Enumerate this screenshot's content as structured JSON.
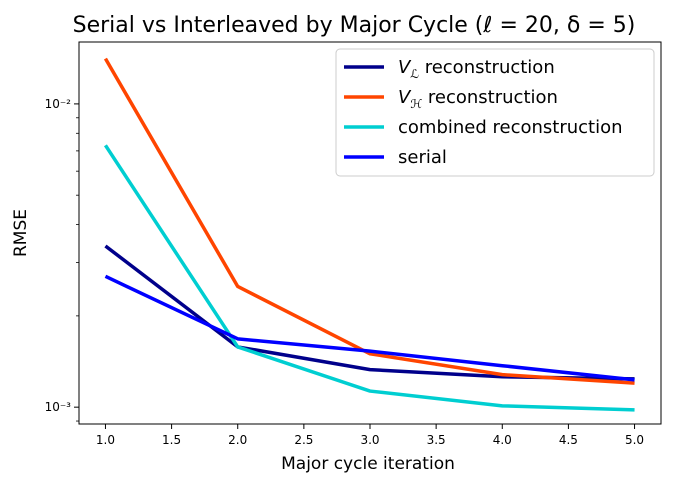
{
  "chart_data": {
    "type": "line",
    "title": "Serial vs Interleaved by Major Cycle (ℓ = 20, δ = 5)",
    "xlabel": "Major cycle iteration",
    "ylabel": "RMSE",
    "xscale": "linear",
    "yscale": "log",
    "xlim": [
      0.8,
      5.2
    ],
    "ylim": [
      0.00088,
      0.016
    ],
    "x_ticks": [
      1.0,
      1.5,
      2.0,
      2.5,
      3.0,
      3.5,
      4.0,
      4.5,
      5.0
    ],
    "x_tick_labels": [
      "1.0",
      "1.5",
      "2.0",
      "2.5",
      "3.0",
      "3.5",
      "4.0",
      "4.5",
      "5.0"
    ],
    "y_ticks": [
      0.001,
      0.01
    ],
    "y_tick_labels": [
      "10⁻³",
      "10⁻²"
    ],
    "grid": false,
    "legend_position": "top-right",
    "x": [
      1,
      2,
      3,
      4,
      5
    ],
    "series": [
      {
        "name": "V_ℒ reconstruction",
        "legend_main": "V",
        "legend_sub": "ℒ",
        "legend_rest": " reconstruction",
        "color": "#00008b",
        "values": [
          0.0034,
          0.00158,
          0.00133,
          0.00126,
          0.00124
        ]
      },
      {
        "name": "V_ℋ reconstruction",
        "legend_main": "V",
        "legend_sub": "ℋ",
        "legend_rest": " reconstruction",
        "color": "#ff4500",
        "values": [
          0.0141,
          0.0025,
          0.0015,
          0.00128,
          0.0012
        ]
      },
      {
        "name": "combined reconstruction",
        "legend_main": "combined reconstruction",
        "legend_sub": "",
        "legend_rest": "",
        "color": "#00ced1",
        "values": [
          0.0073,
          0.00158,
          0.00113,
          0.00101,
          0.00098
        ]
      },
      {
        "name": "serial",
        "legend_main": "serial",
        "legend_sub": "",
        "legend_rest": "",
        "color": "#0000ff",
        "values": [
          0.0027,
          0.00168,
          0.00153,
          0.00137,
          0.00123
        ]
      }
    ]
  }
}
